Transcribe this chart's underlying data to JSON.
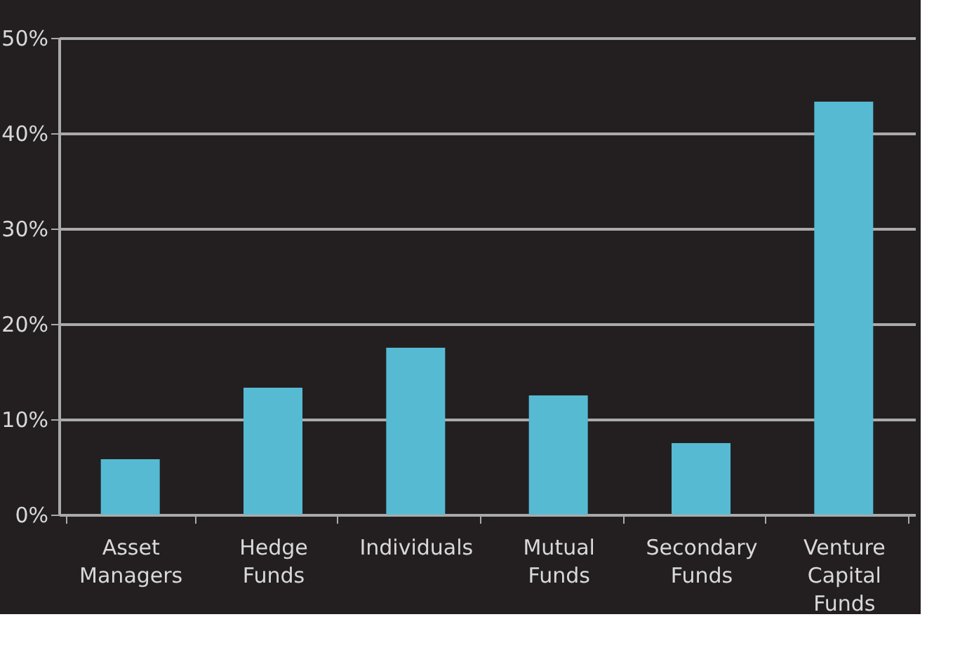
{
  "chart_data": {
    "type": "bar",
    "categories": [
      "Asset Managers",
      "Hedge Funds",
      "Individuals",
      "Mutual Funds",
      "Secondary Funds",
      "Venture Capital Funds"
    ],
    "values": [
      5.8,
      13.3,
      17.5,
      12.5,
      7.5,
      43.3
    ],
    "color": "#56bad3",
    "ylim": [
      0,
      50
    ],
    "yticks": [
      {
        "value": 0,
        "label": "0%"
      },
      {
        "value": 10,
        "label": "10%"
      },
      {
        "value": 20,
        "label": "20%"
      },
      {
        "value": 30,
        "label": "30%"
      },
      {
        "value": 40,
        "label": "40%"
      },
      {
        "value": 50,
        "label": "50%"
      }
    ],
    "grid": "y"
  }
}
